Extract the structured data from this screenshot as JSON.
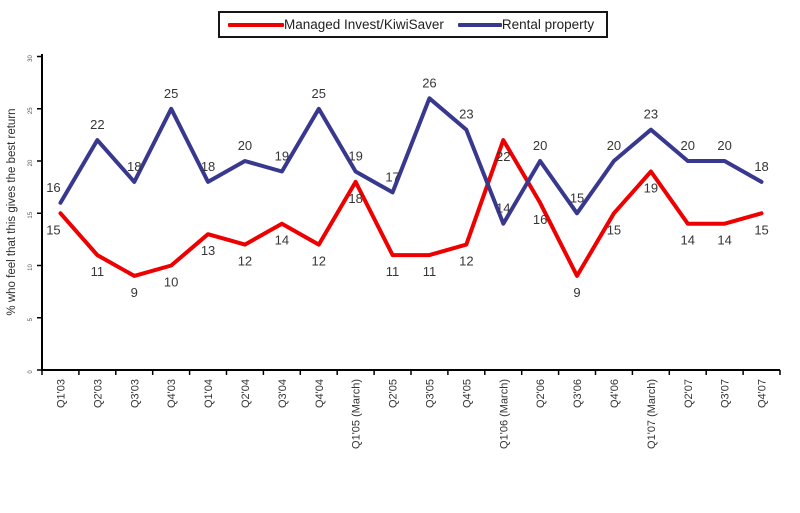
{
  "legend": {
    "items": [
      {
        "label": "Managed Invest/KiwiSaver",
        "color": "#ee0000"
      },
      {
        "label": "Rental property",
        "color": "#38388f"
      }
    ]
  },
  "chart_data": {
    "type": "line",
    "title": "",
    "xlabel": "",
    "ylabel": "% who feel that this gives the best return",
    "ylim": [
      0,
      30
    ],
    "yticks": [
      0,
      5,
      10,
      15,
      20,
      25,
      30
    ],
    "grid": false,
    "legend_position": "top-center",
    "categories": [
      "Q1'03",
      "Q2'03",
      "Q3'03",
      "Q4'03",
      "Q1'04",
      "Q2'04",
      "Q3'04",
      "Q4'04",
      "Q1'05 (March)",
      "Q2'05",
      "Q3'05",
      "Q4'05",
      "Q1'06 (March)",
      "Q2'06",
      "Q3'06",
      "Q4'06",
      "Q1'07 (March)",
      "Q2'07",
      "Q3'07",
      "Q4'07"
    ],
    "series": [
      {
        "name": "Managed Invest/KiwiSaver",
        "color": "#ee0000",
        "label_position": "below",
        "values": [
          15,
          11,
          9,
          10,
          13,
          12,
          14,
          12,
          18,
          11,
          11,
          12,
          22,
          16,
          9,
          15,
          19,
          14,
          14,
          15
        ]
      },
      {
        "name": "Rental property",
        "color": "#38388f",
        "label_position": "above",
        "values": [
          16,
          22,
          18,
          25,
          18,
          20,
          19,
          25,
          19,
          17,
          26,
          23,
          14,
          20,
          15,
          20,
          23,
          20,
          20,
          18
        ]
      }
    ]
  }
}
